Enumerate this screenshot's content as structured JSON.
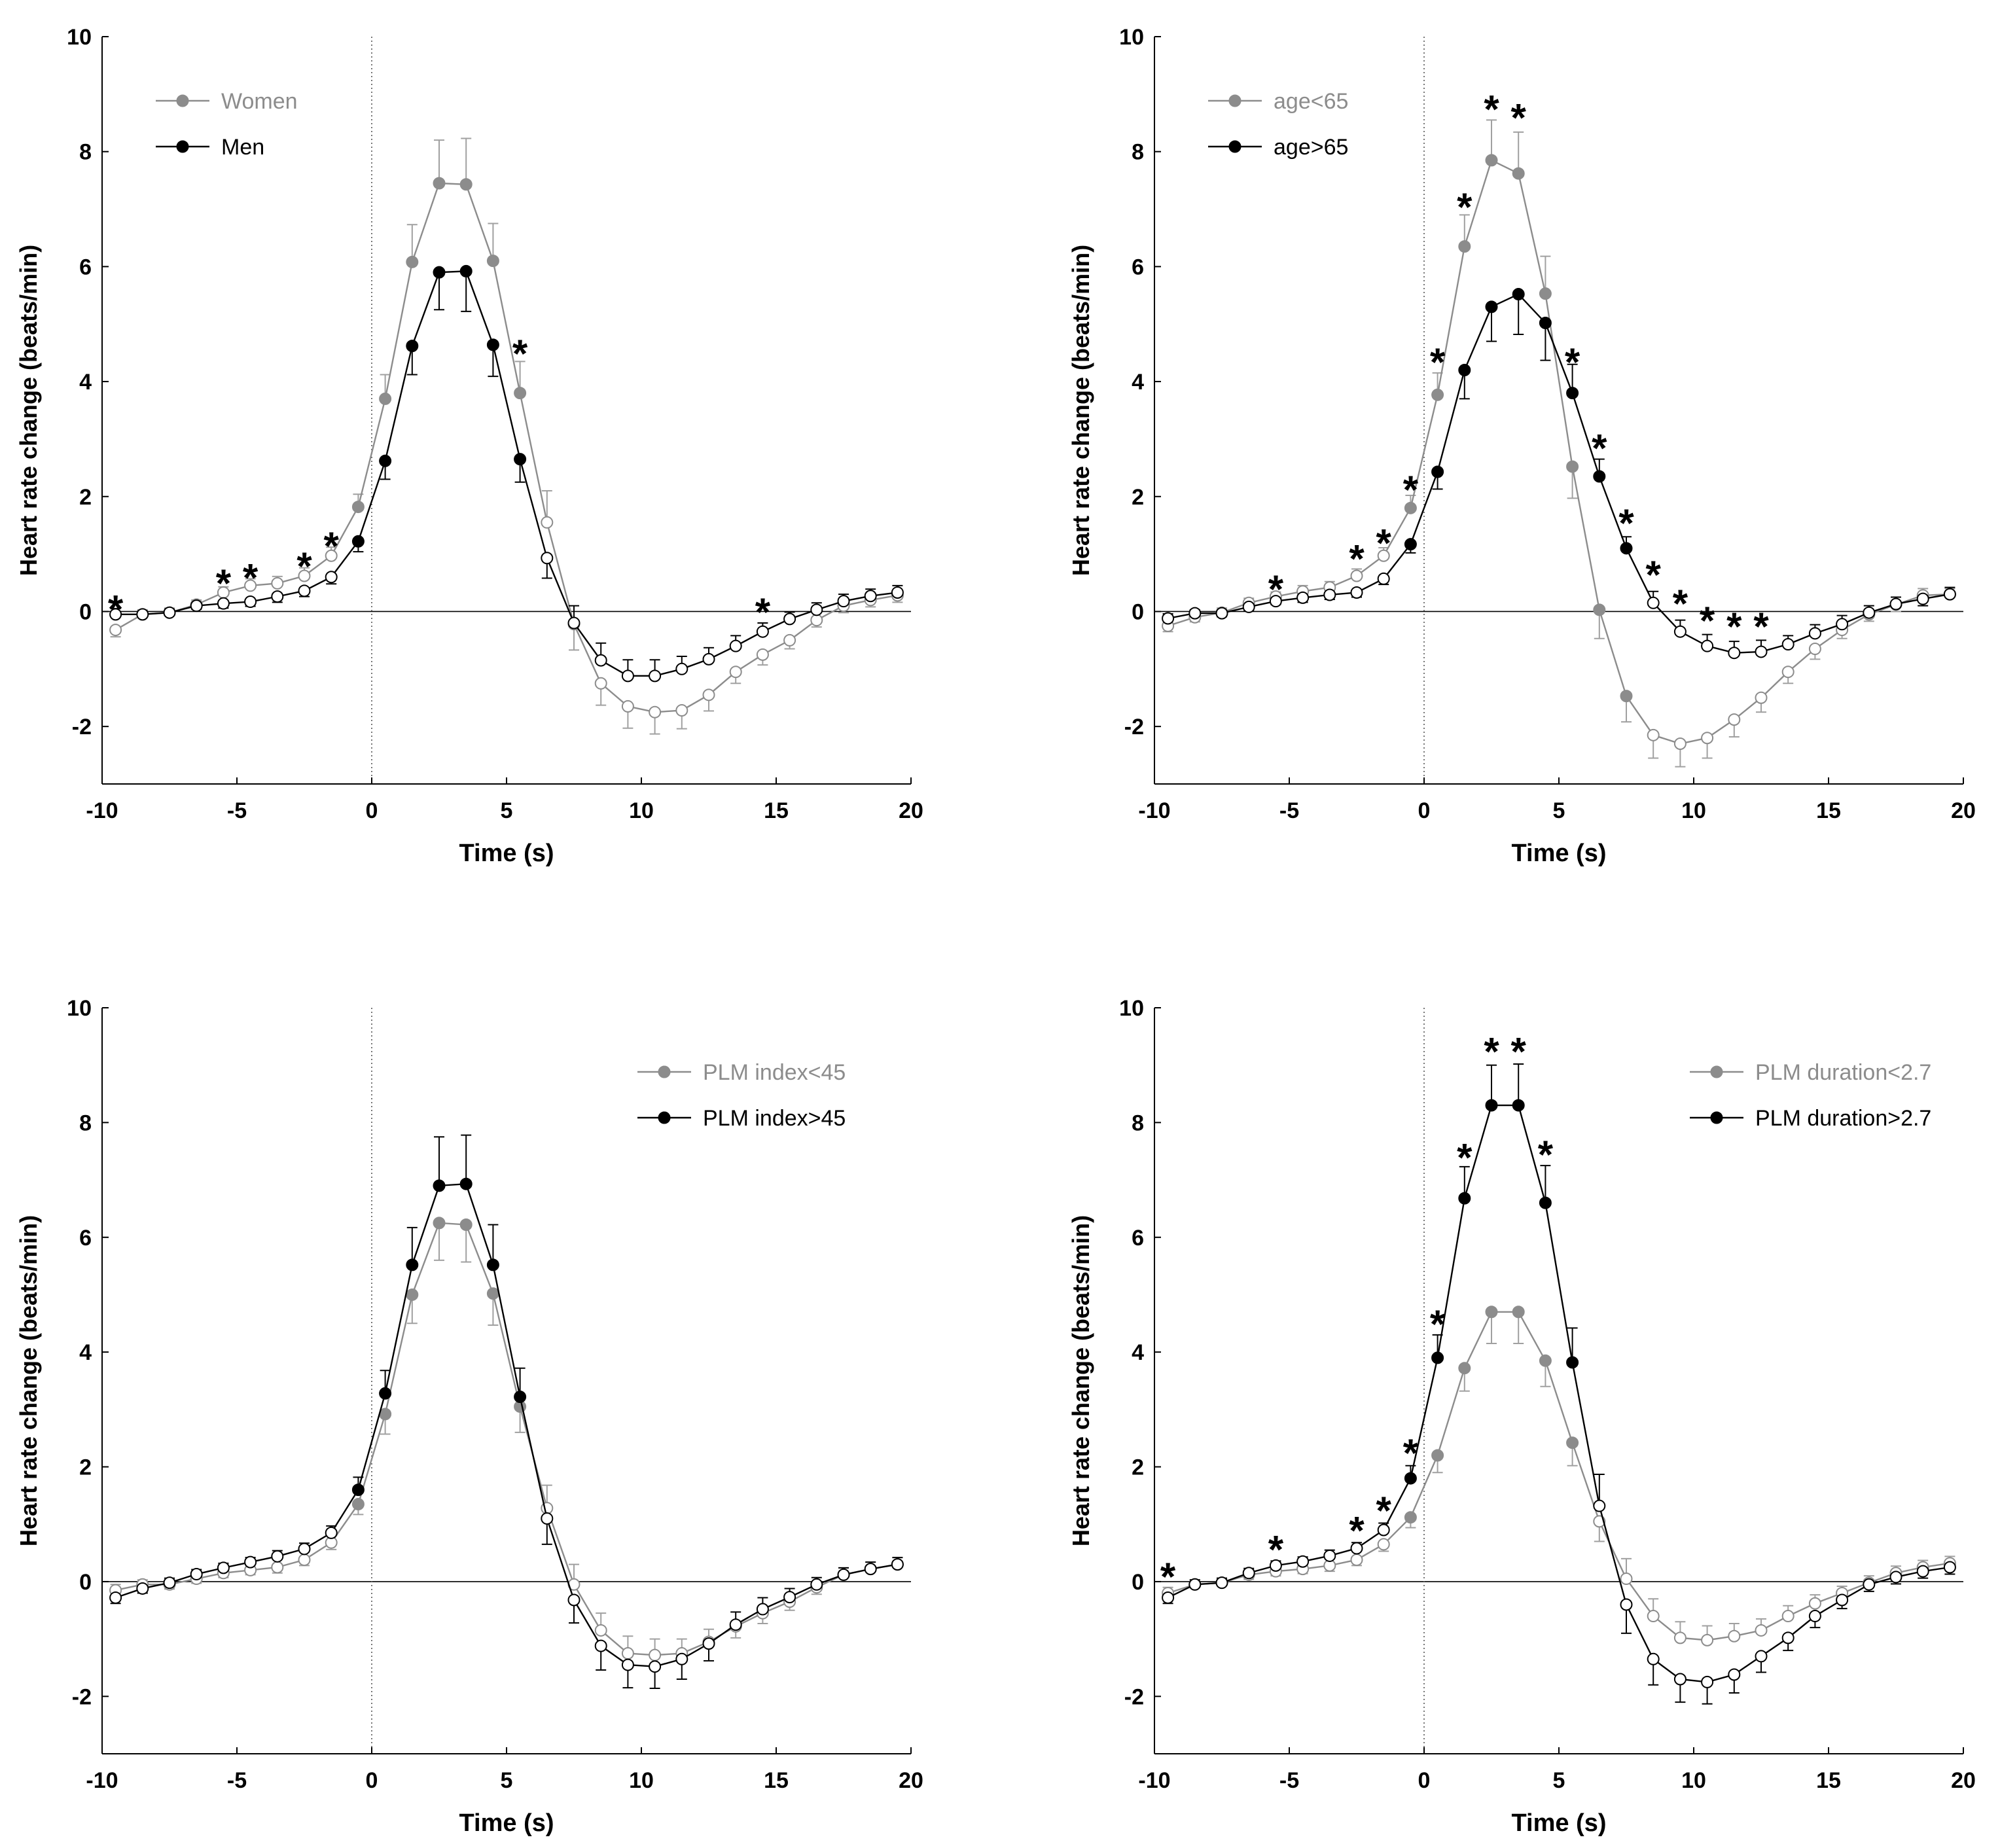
{
  "colors": {
    "group_a": "#8c8c8c",
    "group_b": "#000000",
    "open_fill": "#ffffff",
    "error_a": "#a0a0a0"
  },
  "chart_data": [
    {
      "type": "line",
      "title": "",
      "xlabel": "Time (s)",
      "ylabel": "Heart rate change (beats/min)",
      "xlim": [
        -10,
        20
      ],
      "ylim": [
        -3,
        10
      ],
      "xticks": [
        "-10",
        "-5",
        "0",
        "5",
        "10",
        "15",
        "20"
      ],
      "yticks": [
        "-2",
        "0",
        "2",
        "4",
        "6",
        "8",
        "10"
      ],
      "legend_position": "top-left",
      "x": [
        -9.5,
        -8.5,
        -7.5,
        -6.5,
        -5.5,
        -4.5,
        -3.5,
        -2.5,
        -1.5,
        -0.5,
        0.5,
        1.5,
        2.5,
        3.5,
        4.5,
        5.5,
        6.5,
        7.5,
        8.5,
        9.5,
        10.5,
        11.5,
        12.5,
        13.5,
        14.5,
        15.5,
        16.5,
        17.5,
        18.5,
        19.5
      ],
      "filled_range": [
        -0.5,
        5.5
      ],
      "series": [
        {
          "name": "Women",
          "color": "group_a",
          "values": [
            -0.32,
            -0.05,
            -0.02,
            0.12,
            0.33,
            0.45,
            0.49,
            0.62,
            0.97,
            1.82,
            3.7,
            6.08,
            7.45,
            7.43,
            6.1,
            3.8,
            1.55,
            -0.22,
            -1.25,
            -1.65,
            -1.75,
            -1.72,
            -1.45,
            -1.05,
            -0.75,
            -0.5,
            -0.15,
            0.1,
            0.2,
            0.28
          ],
          "errors": [
            0.12,
            0.08,
            0.08,
            0.08,
            0.1,
            0.12,
            0.12,
            0.14,
            0.15,
            0.22,
            0.42,
            0.65,
            0.75,
            0.8,
            0.65,
            0.55,
            0.55,
            0.45,
            0.38,
            0.38,
            0.38,
            0.32,
            0.28,
            0.2,
            0.18,
            0.15,
            0.12,
            0.12,
            0.12,
            0.12
          ]
        },
        {
          "name": "Men",
          "color": "group_b",
          "values": [
            -0.05,
            -0.05,
            -0.02,
            0.1,
            0.14,
            0.17,
            0.26,
            0.36,
            0.6,
            1.22,
            2.62,
            4.62,
            5.9,
            5.92,
            4.64,
            2.65,
            0.93,
            -0.2,
            -0.85,
            -1.12,
            -1.12,
            -1.0,
            -0.83,
            -0.6,
            -0.35,
            -0.13,
            0.03,
            0.18,
            0.27,
            0.33
          ],
          "errors": [
            0.1,
            0.06,
            0.06,
            0.06,
            0.08,
            0.08,
            0.1,
            0.1,
            0.12,
            0.18,
            0.32,
            0.5,
            0.65,
            0.7,
            0.55,
            0.4,
            0.35,
            0.3,
            0.3,
            0.28,
            0.28,
            0.22,
            0.2,
            0.18,
            0.15,
            0.12,
            0.12,
            0.12,
            0.12,
            0.12
          ]
        }
      ],
      "annotations": [
        {
          "text": "*",
          "x": -9.5,
          "y": 0.1
        },
        {
          "text": "*",
          "x": -5.5,
          "y": 0.55
        },
        {
          "text": "*",
          "x": -4.5,
          "y": 0.65
        },
        {
          "text": "*",
          "x": -2.5,
          "y": 0.85
        },
        {
          "text": "*",
          "x": -1.5,
          "y": 1.2
        },
        {
          "text": "*",
          "x": 5.5,
          "y": 4.55
        },
        {
          "text": "*",
          "x": 14.5,
          "y": 0.05
        }
      ]
    },
    {
      "type": "line",
      "title": "",
      "xlabel": "Time (s)",
      "ylabel": "Heart rate change (beats/min)",
      "xlim": [
        -10,
        20
      ],
      "ylim": [
        -3,
        10
      ],
      "xticks": [
        "-10",
        "-5",
        "0",
        "5",
        "10",
        "15",
        "20"
      ],
      "yticks": [
        "-2",
        "0",
        "2",
        "4",
        "6",
        "8",
        "10"
      ],
      "legend_position": "top-left",
      "x": [
        -9.5,
        -8.5,
        -7.5,
        -6.5,
        -5.5,
        -4.5,
        -3.5,
        -2.5,
        -1.5,
        -0.5,
        0.5,
        1.5,
        2.5,
        3.5,
        4.5,
        5.5,
        6.5,
        7.5,
        8.5,
        9.5,
        10.5,
        11.5,
        12.5,
        13.5,
        14.5,
        15.5,
        16.5,
        17.5,
        18.5,
        19.5
      ],
      "filled_range": [
        -0.5,
        7.5
      ],
      "series": [
        {
          "name": "age<65",
          "color": "group_a",
          "values": [
            -0.25,
            -0.1,
            -0.02,
            0.15,
            0.26,
            0.35,
            0.42,
            0.62,
            0.97,
            1.8,
            3.77,
            6.35,
            7.85,
            7.62,
            5.53,
            2.52,
            0.03,
            -1.47,
            -2.15,
            -2.3,
            -2.2,
            -1.88,
            -1.5,
            -1.05,
            -0.65,
            -0.32,
            -0.05,
            0.12,
            0.28,
            0.3
          ],
          "errors": [
            0.1,
            0.08,
            0.08,
            0.08,
            0.08,
            0.1,
            0.1,
            0.12,
            0.14,
            0.22,
            0.38,
            0.55,
            0.7,
            0.72,
            0.65,
            0.55,
            0.5,
            0.45,
            0.4,
            0.4,
            0.35,
            0.3,
            0.25,
            0.2,
            0.18,
            0.15,
            0.12,
            0.12,
            0.12,
            0.1
          ]
        },
        {
          "name": "age>65",
          "color": "group_b",
          "values": [
            -0.12,
            -0.03,
            -0.03,
            0.08,
            0.18,
            0.24,
            0.29,
            0.33,
            0.57,
            1.17,
            2.43,
            4.2,
            5.3,
            5.52,
            5.02,
            3.8,
            2.35,
            1.1,
            0.15,
            -0.35,
            -0.6,
            -0.72,
            -0.7,
            -0.57,
            -0.38,
            -0.22,
            -0.02,
            0.13,
            0.22,
            0.3
          ],
          "errors": [
            0.08,
            0.06,
            0.06,
            0.06,
            0.06,
            0.08,
            0.08,
            0.08,
            0.1,
            0.15,
            0.3,
            0.5,
            0.6,
            0.7,
            0.65,
            0.5,
            0.3,
            0.2,
            0.2,
            0.2,
            0.2,
            0.2,
            0.2,
            0.15,
            0.15,
            0.15,
            0.12,
            0.12,
            0.12,
            0.12
          ]
        }
      ],
      "annotations": [
        {
          "text": "*",
          "x": -5.5,
          "y": 0.45
        },
        {
          "text": "*",
          "x": -2.5,
          "y": 0.98
        },
        {
          "text": "*",
          "x": -1.5,
          "y": 1.25
        },
        {
          "text": "*",
          "x": -0.5,
          "y": 2.18
        },
        {
          "text": "*",
          "x": 0.5,
          "y": 4.4
        },
        {
          "text": "*",
          "x": 1.5,
          "y": 7.1
        },
        {
          "text": "*",
          "x": 2.5,
          "y": 8.8
        },
        {
          "text": "*",
          "x": 3.5,
          "y": 8.65
        },
        {
          "text": "*",
          "x": 5.5,
          "y": 4.4
        },
        {
          "text": "*",
          "x": 6.5,
          "y": 2.9
        },
        {
          "text": "*",
          "x": 7.5,
          "y": 1.6
        },
        {
          "text": "*",
          "x": 8.5,
          "y": 0.7
        },
        {
          "text": "*",
          "x": 9.5,
          "y": 0.2
        },
        {
          "text": "*",
          "x": 10.5,
          "y": -0.1
        },
        {
          "text": "*",
          "x": 11.5,
          "y": -0.2
        },
        {
          "text": "*",
          "x": 12.5,
          "y": -0.2
        }
      ]
    },
    {
      "type": "line",
      "title": "",
      "xlabel": "Time (s)",
      "ylabel": "Heart rate change (beats/min)",
      "xlim": [
        -10,
        20
      ],
      "ylim": [
        -3,
        10
      ],
      "xticks": [
        "-10",
        "-5",
        "0",
        "5",
        "10",
        "15",
        "20"
      ],
      "yticks": [
        "-2",
        "0",
        "2",
        "4",
        "6",
        "8",
        "10"
      ],
      "legend_position": "top-right",
      "x": [
        -9.5,
        -8.5,
        -7.5,
        -6.5,
        -5.5,
        -4.5,
        -3.5,
        -2.5,
        -1.5,
        -0.5,
        0.5,
        1.5,
        2.5,
        3.5,
        4.5,
        5.5,
        6.5,
        7.5,
        8.5,
        9.5,
        10.5,
        11.5,
        12.5,
        13.5,
        14.5,
        15.5,
        16.5,
        17.5,
        18.5,
        19.5
      ],
      "filled_range": [
        -0.5,
        5.5
      ],
      "series": [
        {
          "name": "PLM index<45",
          "color": "group_a",
          "values": [
            -0.15,
            -0.05,
            -0.05,
            0.05,
            0.15,
            0.2,
            0.25,
            0.38,
            0.68,
            1.35,
            2.92,
            5.0,
            6.25,
            6.22,
            5.02,
            3.05,
            1.28,
            -0.05,
            -0.85,
            -1.25,
            -1.28,
            -1.25,
            -1.05,
            -0.78,
            -0.55,
            -0.35,
            -0.1,
            0.12,
            0.22,
            0.3
          ],
          "errors": [
            0.1,
            0.08,
            0.08,
            0.08,
            0.08,
            0.08,
            0.1,
            0.1,
            0.12,
            0.18,
            0.35,
            0.5,
            0.65,
            0.65,
            0.55,
            0.45,
            0.4,
            0.35,
            0.3,
            0.3,
            0.28,
            0.25,
            0.22,
            0.2,
            0.18,
            0.15,
            0.12,
            0.12,
            0.12,
            0.12
          ]
        },
        {
          "name": "PLM index>45",
          "color": "group_b",
          "values": [
            -0.28,
            -0.12,
            -0.02,
            0.13,
            0.24,
            0.34,
            0.44,
            0.57,
            0.85,
            1.6,
            3.28,
            5.52,
            6.9,
            6.93,
            5.52,
            3.22,
            1.1,
            -0.32,
            -1.12,
            -1.45,
            -1.48,
            -1.35,
            -1.08,
            -0.75,
            -0.48,
            -0.27,
            -0.05,
            0.12,
            0.22,
            0.3
          ],
          "errors": [
            0.1,
            0.08,
            0.08,
            0.08,
            0.08,
            0.08,
            0.1,
            0.1,
            0.12,
            0.22,
            0.4,
            0.65,
            0.85,
            0.85,
            0.7,
            0.5,
            0.45,
            0.4,
            0.42,
            0.4,
            0.38,
            0.35,
            0.3,
            0.22,
            0.2,
            0.15,
            0.12,
            0.12,
            0.12,
            0.12
          ]
        }
      ],
      "annotations": []
    },
    {
      "type": "line",
      "title": "",
      "xlabel": "Time (s)",
      "ylabel": "Heart rate change (beats/min)",
      "xlim": [
        -10,
        20
      ],
      "ylim": [
        -3,
        10
      ],
      "xticks": [
        "-10",
        "-5",
        "0",
        "5",
        "10",
        "15",
        "20"
      ],
      "yticks": [
        "-2",
        "0",
        "2",
        "4",
        "6",
        "8",
        "10"
      ],
      "legend_position": "top-right",
      "x": [
        -9.5,
        -8.5,
        -7.5,
        -6.5,
        -5.5,
        -4.5,
        -3.5,
        -2.5,
        -1.5,
        -0.5,
        0.5,
        1.5,
        2.5,
        3.5,
        4.5,
        5.5,
        6.5,
        7.5,
        8.5,
        9.5,
        10.5,
        11.5,
        12.5,
        13.5,
        14.5,
        15.5,
        16.5,
        17.5,
        18.5,
        19.5
      ],
      "filled_range": [
        -0.5,
        5.5
      ],
      "series": [
        {
          "name": "PLM duration<2.7",
          "color": "group_a",
          "values": [
            -0.2,
            -0.05,
            -0.02,
            0.12,
            0.18,
            0.22,
            0.28,
            0.38,
            0.65,
            1.12,
            2.2,
            3.72,
            4.7,
            4.7,
            3.85,
            2.42,
            1.05,
            0.05,
            -0.6,
            -0.98,
            -1.02,
            -0.95,
            -0.85,
            -0.6,
            -0.38,
            -0.2,
            -0.02,
            0.15,
            0.25,
            0.32
          ],
          "errors": [
            0.1,
            0.08,
            0.08,
            0.08,
            0.08,
            0.08,
            0.1,
            0.1,
            0.12,
            0.18,
            0.3,
            0.4,
            0.55,
            0.55,
            0.45,
            0.4,
            0.35,
            0.35,
            0.3,
            0.28,
            0.25,
            0.22,
            0.2,
            0.18,
            0.15,
            0.12,
            0.12,
            0.12,
            0.12,
            0.12
          ]
        },
        {
          "name": "PLM duration>2.7",
          "color": "group_b",
          "values": [
            -0.28,
            -0.05,
            -0.02,
            0.15,
            0.28,
            0.35,
            0.45,
            0.58,
            0.9,
            1.8,
            3.9,
            6.68,
            8.3,
            8.3,
            6.6,
            3.82,
            1.32,
            -0.4,
            -1.35,
            -1.7,
            -1.75,
            -1.62,
            -1.3,
            -0.98,
            -0.6,
            -0.32,
            -0.05,
            0.08,
            0.18,
            0.25
          ],
          "errors": [
            0.1,
            0.08,
            0.08,
            0.08,
            0.08,
            0.08,
            0.1,
            0.1,
            0.12,
            0.22,
            0.4,
            0.55,
            0.7,
            0.72,
            0.65,
            0.6,
            0.55,
            0.5,
            0.45,
            0.4,
            0.38,
            0.32,
            0.28,
            0.22,
            0.2,
            0.15,
            0.12,
            0.12,
            0.12,
            0.12
          ]
        }
      ],
      "annotations": [
        {
          "text": "*",
          "x": -9.5,
          "y": 0.15
        },
        {
          "text": "*",
          "x": -5.5,
          "y": 0.62
        },
        {
          "text": "*",
          "x": -2.5,
          "y": 0.95
        },
        {
          "text": "*",
          "x": -1.5,
          "y": 1.3
        },
        {
          "text": "*",
          "x": -0.5,
          "y": 2.3
        },
        {
          "text": "*",
          "x": 0.5,
          "y": 4.55
        },
        {
          "text": "*",
          "x": 1.5,
          "y": 7.45
        },
        {
          "text": "*",
          "x": 2.5,
          "y": 9.3
        },
        {
          "text": "*",
          "x": 3.5,
          "y": 9.3
        },
        {
          "text": "*",
          "x": 4.5,
          "y": 7.5
        }
      ]
    }
  ]
}
